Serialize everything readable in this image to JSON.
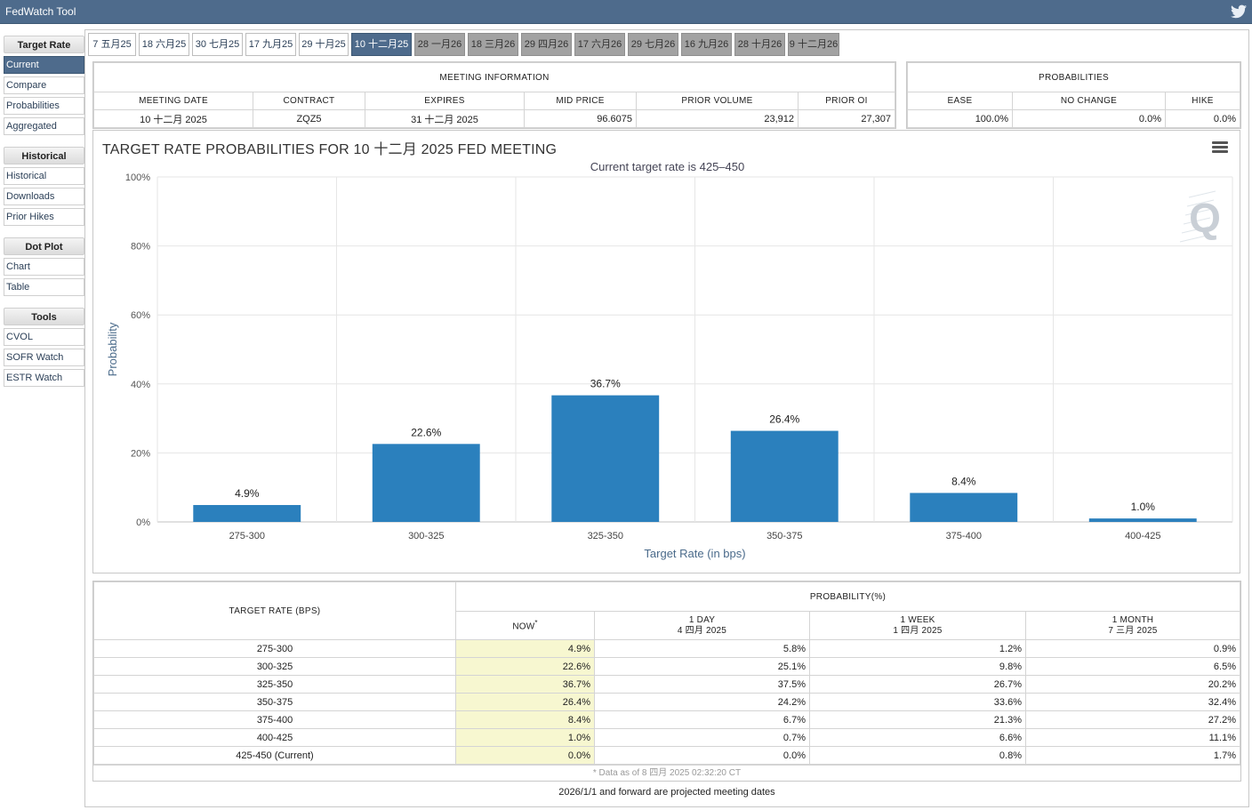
{
  "app": {
    "title": "FedWatch Tool",
    "social_icon": "twitter-icon"
  },
  "sidebar": {
    "sections": [
      {
        "heading": "Target Rate",
        "items": [
          "Current",
          "Compare",
          "Probabilities",
          "Aggregated"
        ]
      },
      {
        "heading": "Historical",
        "items": [
          "Historical",
          "Downloads",
          "Prior Hikes"
        ]
      },
      {
        "heading": "Dot Plot",
        "items": [
          "Chart",
          "Table"
        ]
      },
      {
        "heading": "Tools",
        "items": [
          "CVOL",
          "SOFR Watch",
          "ESTR Watch"
        ]
      }
    ],
    "active_item": "Current"
  },
  "tabs": [
    {
      "label": "7 五月25",
      "state": "current"
    },
    {
      "label": "18 六月25",
      "state": "current"
    },
    {
      "label": "30 七月25",
      "state": "current"
    },
    {
      "label": "17 九月25",
      "state": "current"
    },
    {
      "label": "29 十月25",
      "state": "current"
    },
    {
      "label": "10 十二月25",
      "state": "active"
    },
    {
      "label": "28 一月26",
      "state": "future"
    },
    {
      "label": "18 三月26",
      "state": "future"
    },
    {
      "label": "29 四月26",
      "state": "future"
    },
    {
      "label": "17 六月26",
      "state": "future"
    },
    {
      "label": "29 七月26",
      "state": "future"
    },
    {
      "label": "16 九月26",
      "state": "future"
    },
    {
      "label": "28 十月26",
      "state": "future"
    },
    {
      "label": "9 十二月26",
      "state": "future"
    }
  ],
  "meeting_info": {
    "caption": "MEETING INFORMATION",
    "headers": [
      "MEETING DATE",
      "CONTRACT",
      "EXPIRES",
      "MID PRICE",
      "PRIOR VOLUME",
      "PRIOR OI"
    ],
    "values": [
      "10 十二月 2025",
      "ZQZ5",
      "31 十二月 2025",
      "96.6075",
      "23,912",
      "27,307"
    ]
  },
  "probabilities": {
    "caption": "PROBABILITIES",
    "headers": [
      "EASE",
      "NO CHANGE",
      "HIKE"
    ],
    "values": [
      "100.0%",
      "0.0%",
      "0.0%"
    ]
  },
  "chart": {
    "title": "TARGET RATE PROBABILITIES FOR 10 十二月 2025 FED MEETING",
    "subtitle": "Current target rate is 425–450",
    "menu_icon": "hamburger-menu-icon",
    "watermark": "Q"
  },
  "chart_data": {
    "type": "bar",
    "title": "TARGET RATE PROBABILITIES FOR 10 十二月 2025 FED MEETING",
    "subtitle": "Current target rate is 425–450",
    "xlabel": "Target Rate (in bps)",
    "ylabel": "Probability",
    "categories": [
      "275-300",
      "300-325",
      "325-350",
      "350-375",
      "375-400",
      "400-425"
    ],
    "values": [
      4.9,
      22.6,
      36.7,
      26.4,
      8.4,
      1.0
    ],
    "data_labels": [
      "4.9%",
      "22.6%",
      "36.7%",
      "26.4%",
      "8.4%",
      "1.0%"
    ],
    "ylim": [
      0,
      100
    ],
    "yticks": [
      "0%",
      "20%",
      "40%",
      "60%",
      "80%",
      "100%"
    ],
    "ytick_values": [
      0,
      20,
      40,
      60,
      80,
      100
    ],
    "bar_color": "#2b80bd",
    "grid": true,
    "legend": "none"
  },
  "prob_table": {
    "col1_header": "TARGET RATE (BPS)",
    "group_header": "PROBABILITY(%)",
    "sub_headers": [
      {
        "line1": "NOW",
        "line2": "",
        "mark": "*"
      },
      {
        "line1": "1 DAY",
        "line2": "4 四月 2025"
      },
      {
        "line1": "1 WEEK",
        "line2": "1 四月 2025"
      },
      {
        "line1": "1 MONTH",
        "line2": "7 三月 2025"
      }
    ],
    "rows": [
      {
        "rate": "275-300",
        "now": "4.9%",
        "day": "5.8%",
        "week": "1.2%",
        "month": "0.9%"
      },
      {
        "rate": "300-325",
        "now": "22.6%",
        "day": "25.1%",
        "week": "9.8%",
        "month": "6.5%"
      },
      {
        "rate": "325-350",
        "now": "36.7%",
        "day": "37.5%",
        "week": "26.7%",
        "month": "20.2%"
      },
      {
        "rate": "350-375",
        "now": "26.4%",
        "day": "24.2%",
        "week": "33.6%",
        "month": "32.4%"
      },
      {
        "rate": "375-400",
        "now": "8.4%",
        "day": "6.7%",
        "week": "21.3%",
        "month": "27.2%"
      },
      {
        "rate": "400-425",
        "now": "1.0%",
        "day": "0.7%",
        "week": "6.6%",
        "month": "11.1%"
      },
      {
        "rate": "425-450 (Current)",
        "now": "0.0%",
        "day": "0.0%",
        "week": "0.8%",
        "month": "1.7%"
      }
    ],
    "footnote": "* Data as of 8 四月 2025 02:32:20 CT"
  },
  "projected_note": "2026/1/1 and forward are projected meeting dates"
}
